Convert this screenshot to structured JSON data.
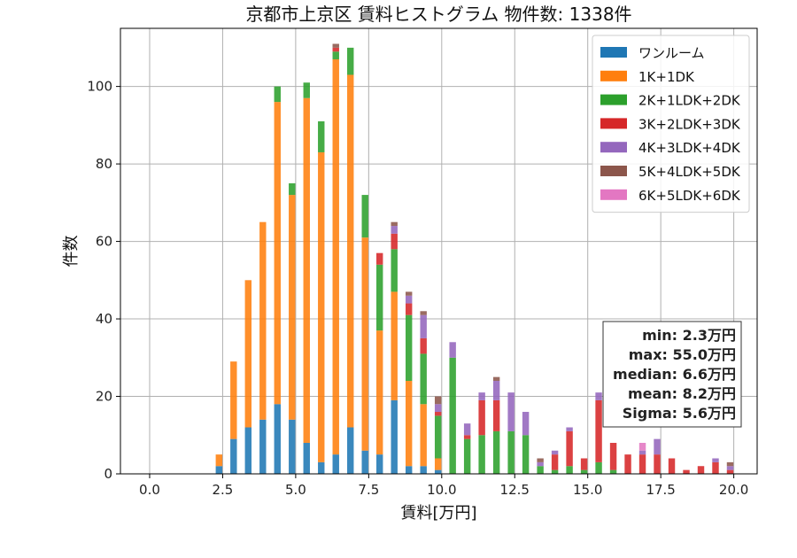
{
  "chart_data": {
    "type": "bar",
    "stacked": true,
    "title": "京都市上京区 賃料ヒストグラム  物件数: 1338件",
    "xlabel": "賃料[万円]",
    "ylabel": "件数",
    "xlim": [
      -1.0,
      20.8
    ],
    "ylim": [
      0,
      115
    ],
    "xticks": [
      0.0,
      2.5,
      5.0,
      7.5,
      10.0,
      12.5,
      15.0,
      17.5,
      20.0
    ],
    "xtick_labels": [
      "0.0",
      "2.5",
      "5.0",
      "7.5",
      "10.0",
      "12.5",
      "15.0",
      "17.5",
      "20.0"
    ],
    "yticks": [
      0,
      20,
      40,
      60,
      80,
      100
    ],
    "ytick_labels": [
      "0",
      "20",
      "40",
      "60",
      "80",
      "100"
    ],
    "grid": true,
    "legend_position": "top-right",
    "bin_width": 0.25,
    "bin_starts": [
      1.75,
      2.0,
      2.25,
      2.5,
      2.75,
      3.0,
      3.25,
      3.5,
      3.75,
      4.0,
      4.25,
      4.5,
      4.75,
      5.0,
      5.25,
      5.5,
      5.75,
      6.0,
      6.25,
      6.5,
      6.75,
      7.0,
      7.25,
      7.5,
      7.75,
      8.0,
      8.25,
      8.5,
      8.75,
      9.0,
      9.25,
      9.5,
      9.75,
      10.0,
      10.25,
      10.5,
      10.75,
      11.0,
      11.25,
      11.5,
      11.75,
      12.0,
      12.25,
      12.5,
      12.75,
      13.0,
      13.25,
      13.5,
      13.75,
      14.0,
      14.25,
      14.5,
      14.75,
      15.0,
      15.25,
      15.5,
      15.75,
      16.0,
      16.25,
      16.5,
      16.75,
      17.0,
      17.25,
      17.5,
      17.75,
      18.0,
      18.25,
      18.5,
      18.75,
      19.0,
      19.25,
      19.5,
      19.75
    ],
    "series": [
      {
        "name": "ワンルーム",
        "color": "#1f77b4",
        "values": [
          0,
          0,
          2,
          0,
          9,
          0,
          12,
          0,
          14,
          0,
          18,
          0,
          14,
          0,
          8,
          0,
          3,
          0,
          5,
          0,
          12,
          0,
          6,
          0,
          5,
          0,
          19,
          0,
          2,
          0,
          2,
          0,
          1,
          0,
          0,
          0,
          0,
          0,
          0,
          0,
          0,
          0,
          0,
          0,
          0,
          0,
          0,
          0,
          0,
          0,
          0,
          0,
          0,
          0,
          0,
          0,
          0,
          0,
          0,
          0,
          0,
          0,
          0,
          0,
          0,
          0,
          0,
          0,
          0,
          0,
          0,
          0,
          0
        ]
      },
      {
        "name": "1K+1DK",
        "color": "#ff7f0e",
        "values": [
          0,
          0,
          3,
          0,
          20,
          0,
          38,
          0,
          51,
          0,
          78,
          0,
          58,
          0,
          89,
          0,
          80,
          0,
          102,
          0,
          91,
          0,
          55,
          0,
          32,
          0,
          28,
          0,
          22,
          0,
          16,
          0,
          3,
          0,
          0,
          0,
          0,
          0,
          0,
          0,
          0,
          0,
          0,
          0,
          0,
          0,
          0,
          0,
          0,
          0,
          0,
          0,
          0,
          0,
          0,
          0,
          0,
          0,
          0,
          0,
          0,
          0,
          0,
          0,
          0,
          0,
          0,
          0,
          0,
          0,
          0,
          0,
          0
        ]
      },
      {
        "name": "2K+1LDK+2DK",
        "color": "#2ca02c",
        "values": [
          0,
          0,
          0,
          0,
          0,
          0,
          0,
          0,
          0,
          0,
          4,
          0,
          3,
          0,
          4,
          0,
          8,
          0,
          2,
          0,
          7,
          0,
          11,
          0,
          17,
          0,
          11,
          0,
          17,
          0,
          13,
          0,
          11,
          0,
          30,
          0,
          9,
          0,
          10,
          0,
          11,
          0,
          11,
          0,
          10,
          0,
          2,
          0,
          1,
          0,
          2,
          0,
          1,
          0,
          3,
          0,
          1,
          0,
          0,
          0,
          0,
          0,
          0,
          0,
          0,
          0,
          0,
          0,
          0,
          0,
          0,
          0,
          0
        ]
      },
      {
        "name": "3K+2LDK+3DK",
        "color": "#d62728",
        "values": [
          0,
          0,
          0,
          0,
          0,
          0,
          0,
          0,
          0,
          0,
          0,
          0,
          0,
          0,
          0,
          0,
          0,
          0,
          1,
          0,
          0,
          0,
          0,
          0,
          3,
          0,
          4,
          0,
          3,
          0,
          4,
          0,
          1,
          0,
          0,
          0,
          1,
          0,
          9,
          0,
          8,
          0,
          0,
          0,
          0,
          0,
          0,
          0,
          4,
          0,
          9,
          0,
          3,
          0,
          16,
          0,
          7,
          0,
          5,
          0,
          5,
          0,
          5,
          0,
          4,
          0,
          1,
          0,
          2,
          0,
          3,
          0,
          1
        ]
      },
      {
        "name": "4K+3LDK+4DK",
        "color": "#9467bd",
        "values": [
          0,
          0,
          0,
          0,
          0,
          0,
          0,
          0,
          0,
          0,
          0,
          0,
          0,
          0,
          0,
          0,
          0,
          0,
          0,
          0,
          0,
          0,
          0,
          0,
          0,
          0,
          2,
          0,
          2,
          0,
          6,
          0,
          2,
          0,
          4,
          0,
          3,
          0,
          2,
          0,
          5,
          0,
          10,
          0,
          6,
          0,
          1,
          0,
          1,
          0,
          1,
          0,
          0,
          0,
          2,
          0,
          0,
          0,
          0,
          0,
          1,
          0,
          4,
          0,
          0,
          0,
          0,
          0,
          0,
          0,
          1,
          0,
          1
        ]
      },
      {
        "name": "5K+4LDK+5DK",
        "color": "#8c564b",
        "values": [
          0,
          0,
          0,
          0,
          0,
          0,
          0,
          0,
          0,
          0,
          0,
          0,
          0,
          0,
          0,
          0,
          0,
          0,
          1,
          0,
          0,
          0,
          0,
          0,
          0,
          0,
          1,
          0,
          1,
          0,
          1,
          0,
          2,
          0,
          0,
          0,
          0,
          0,
          0,
          0,
          1,
          0,
          0,
          0,
          0,
          0,
          1,
          0,
          0,
          0,
          0,
          0,
          0,
          0,
          0,
          0,
          0,
          0,
          0,
          0,
          0,
          0,
          0,
          0,
          0,
          0,
          0,
          0,
          0,
          0,
          0,
          0,
          1
        ]
      },
      {
        "name": "6K+5LDK+6DK",
        "color": "#e377c2",
        "values": [
          0,
          0,
          0,
          0,
          0,
          0,
          0,
          0,
          0,
          0,
          0,
          0,
          0,
          0,
          0,
          0,
          0,
          0,
          0,
          0,
          0,
          0,
          0,
          0,
          0,
          0,
          0,
          0,
          0,
          0,
          0,
          0,
          0,
          0,
          0,
          0,
          0,
          0,
          0,
          0,
          0,
          0,
          0,
          0,
          0,
          0,
          0,
          0,
          0,
          0,
          0,
          0,
          0,
          0,
          0,
          0,
          0,
          0,
          0,
          0,
          2,
          0,
          0,
          0,
          0,
          0,
          0,
          0,
          0,
          0,
          0,
          0,
          0
        ]
      }
    ],
    "stats": [
      "min: 2.3万円",
      "max: 55.0万円",
      "median: 6.6万円",
      "mean: 8.2万円",
      "Sigma: 5.6万円"
    ]
  }
}
